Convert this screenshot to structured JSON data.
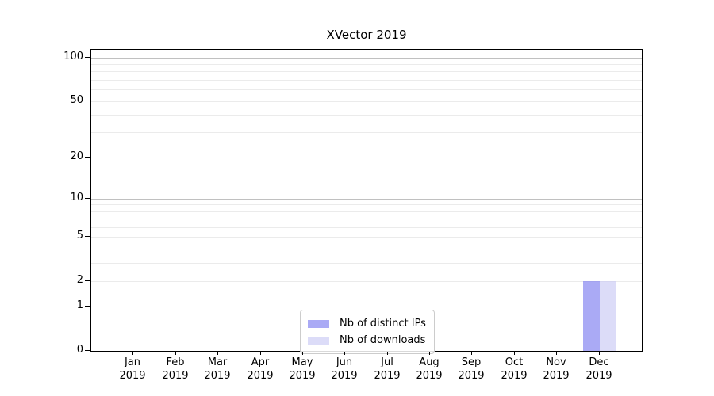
{
  "title": "XVector 2019",
  "chart_data": {
    "type": "bar",
    "title": "XVector 2019",
    "categories": [
      "Jan",
      "Feb",
      "Mar",
      "Apr",
      "May",
      "Jun",
      "Jul",
      "Aug",
      "Sep",
      "Oct",
      "Nov",
      "Dec"
    ],
    "category_year": "2019",
    "series": [
      {
        "name": "Nb of distinct IPs",
        "color": "rgba(124,124,240,0.65)",
        "values": [
          0,
          0,
          0,
          0,
          0,
          0,
          0,
          0,
          0,
          0,
          0,
          2
        ]
      },
      {
        "name": "Nb of downloads",
        "color": "rgba(201,201,244,0.65)",
        "values": [
          0,
          0,
          0,
          0,
          0,
          0,
          0,
          0,
          0,
          0,
          0,
          2
        ]
      }
    ],
    "xlabel": "",
    "ylabel": "",
    "ylim": [
      0,
      112
    ],
    "y_axis": {
      "scale": "log1p",
      "ticks": [
        0,
        1,
        2,
        5,
        10,
        20,
        50,
        100
      ],
      "major_gridlines": [
        1,
        10,
        100
      ],
      "minor_gridlines": [
        2,
        3,
        4,
        5,
        6,
        7,
        8,
        9,
        20,
        30,
        40,
        50,
        60,
        70,
        80,
        90
      ],
      "max_display": 112
    },
    "grid": true,
    "legend_position": "lower center"
  },
  "colors": {
    "major_grid": "#c0c0c0",
    "minor_grid": "#ebebeb",
    "spine": "#000000",
    "text": "#000000"
  }
}
